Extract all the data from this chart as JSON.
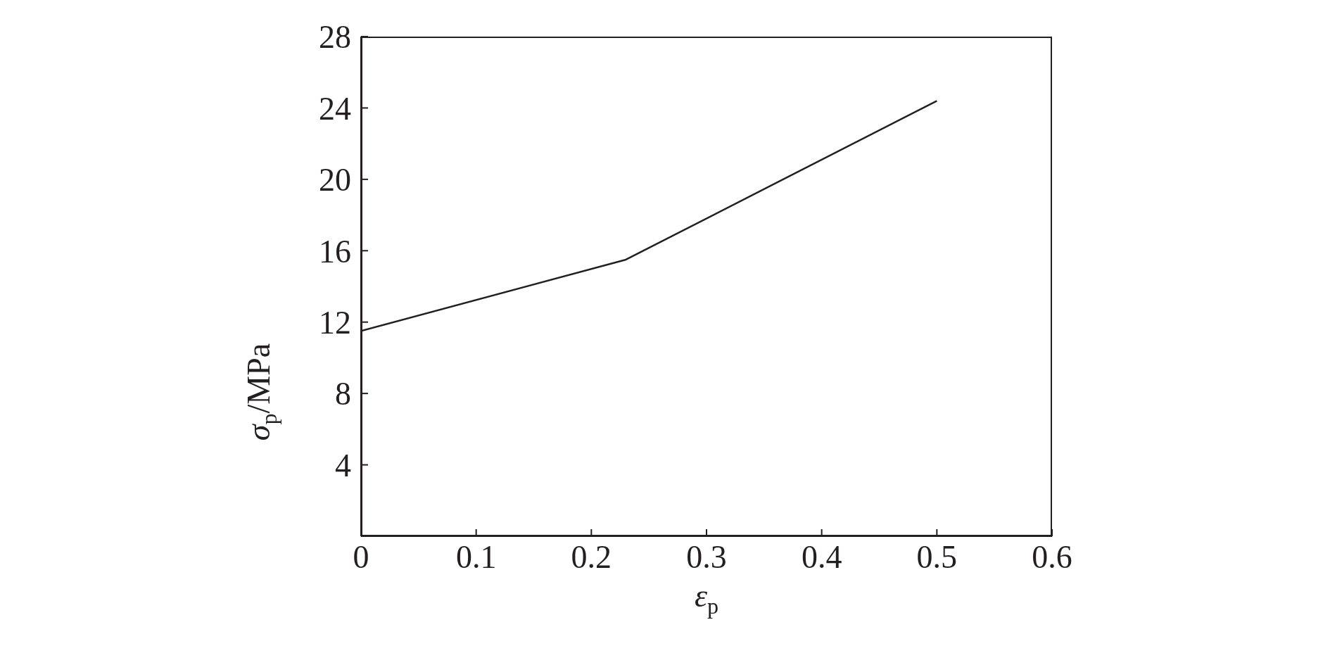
{
  "chart_data": {
    "type": "line",
    "xlabel": "ε$_{p}$",
    "ylabel": "σ$_{p}$/MPa",
    "x": [
      0,
      0.23,
      0.5
    ],
    "series": [
      {
        "color": "#231f20",
        "values": [
          11.5,
          15.5,
          24.4
        ]
      }
    ],
    "xlim": [
      0,
      0.6
    ],
    "xticks": [
      0,
      0.1,
      0.2,
      0.3,
      0.4,
      0.5,
      0.6
    ],
    "ylim": [
      0,
      28
    ],
    "yticks": [
      {
        "value": 0,
        "label": null
      },
      4,
      8,
      12,
      16,
      20,
      24,
      28
    ],
    "marker": "none",
    "line_style": "solid"
  }
}
